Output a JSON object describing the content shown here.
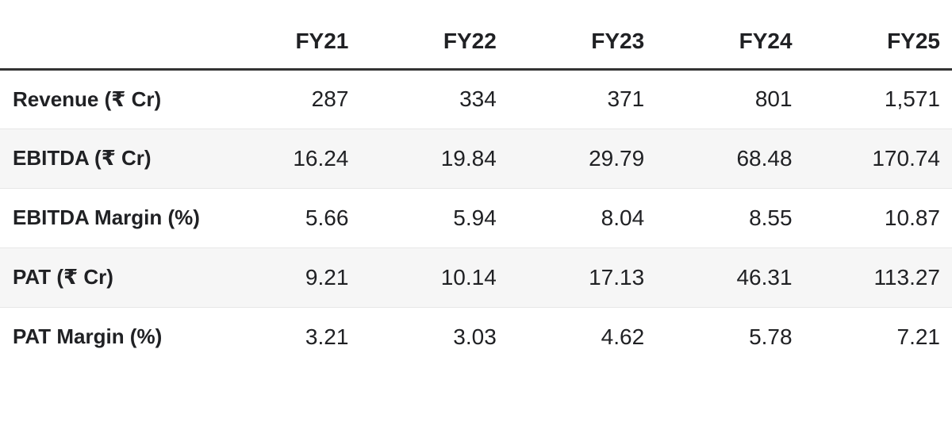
{
  "table": {
    "columns": [
      "",
      "FY21",
      "FY22",
      "FY23",
      "FY24",
      "FY25"
    ],
    "rows": [
      {
        "label": "Revenue (₹ Cr)",
        "values": [
          "287",
          "334",
          "371",
          "801",
          "1,571"
        ]
      },
      {
        "label": "EBITDA (₹ Cr)",
        "values": [
          "16.24",
          "19.84",
          "29.79",
          "68.48",
          "170.74"
        ]
      },
      {
        "label": "EBITDA Margin (%)",
        "values": [
          "5.66",
          "5.94",
          "8.04",
          "8.55",
          "10.87"
        ]
      },
      {
        "label": "PAT (₹ Cr)",
        "values": [
          "9.21",
          "10.14",
          "17.13",
          "46.31",
          "113.27"
        ]
      },
      {
        "label": "PAT Margin (%)",
        "values": [
          "3.21",
          "3.03",
          "4.62",
          "5.78",
          "7.21"
        ]
      }
    ]
  },
  "chart_data": {
    "type": "table",
    "title": "",
    "categories": [
      "FY21",
      "FY22",
      "FY23",
      "FY24",
      "FY25"
    ],
    "series": [
      {
        "name": "Revenue (₹ Cr)",
        "values": [
          287,
          334,
          371,
          801,
          1571
        ]
      },
      {
        "name": "EBITDA (₹ Cr)",
        "values": [
          16.24,
          19.84,
          29.79,
          68.48,
          170.74
        ]
      },
      {
        "name": "EBITDA Margin (%)",
        "values": [
          5.66,
          5.94,
          8.04,
          8.55,
          10.87
        ]
      },
      {
        "name": "PAT (₹ Cr)",
        "values": [
          9.21,
          10.14,
          17.13,
          46.31,
          113.27
        ]
      },
      {
        "name": "PAT Margin (%)",
        "values": [
          3.21,
          3.03,
          4.62,
          5.78,
          7.21
        ]
      }
    ]
  },
  "colors": {
    "background": "#ffffff",
    "text": "#202124",
    "header_rule": "#333333",
    "row_stripe": "#f6f6f6",
    "row_separator": "#e7e7e7"
  }
}
